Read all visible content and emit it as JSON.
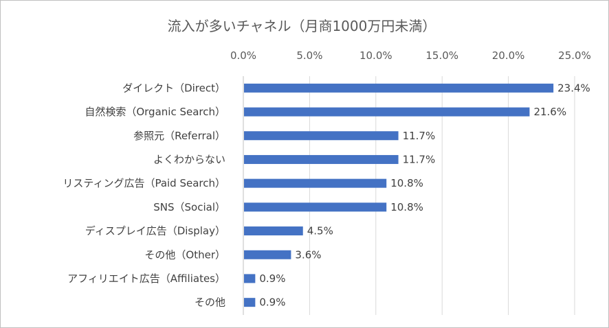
{
  "chart_data": {
    "type": "bar",
    "orientation": "horizontal",
    "title": "流入が多いチャネル（月商1000万円未満）",
    "xlabel": "",
    "ylabel": "",
    "xlim": [
      0,
      25
    ],
    "x_ticks": [
      "0.0%",
      "5.0%",
      "10.0%",
      "15.0%",
      "20.0%",
      "25.0%"
    ],
    "x_tick_values": [
      0,
      5,
      10,
      15,
      20,
      25
    ],
    "x_axis_position": "top",
    "grid": true,
    "legend": "none",
    "bar_color": "#4472c4",
    "categories": [
      "ダイレクト（Direct）",
      "自然検索（Organic Search）",
      "参照元（Referral）",
      "よくわからない",
      "リスティング広告（Paid Search）",
      "SNS（Social）",
      "ディスプレイ広告（Display）",
      "その他（Other）",
      "アフィリエイト広告（Affiliates）",
      "その他"
    ],
    "values": [
      23.4,
      21.6,
      11.7,
      11.7,
      10.8,
      10.8,
      4.5,
      3.6,
      0.9,
      0.9
    ],
    "data_labels": [
      "23.4%",
      "21.6%",
      "11.7%",
      "11.7%",
      "10.8%",
      "10.8%",
      "4.5%",
      "3.6%",
      "0.9%",
      "0.9%"
    ]
  }
}
